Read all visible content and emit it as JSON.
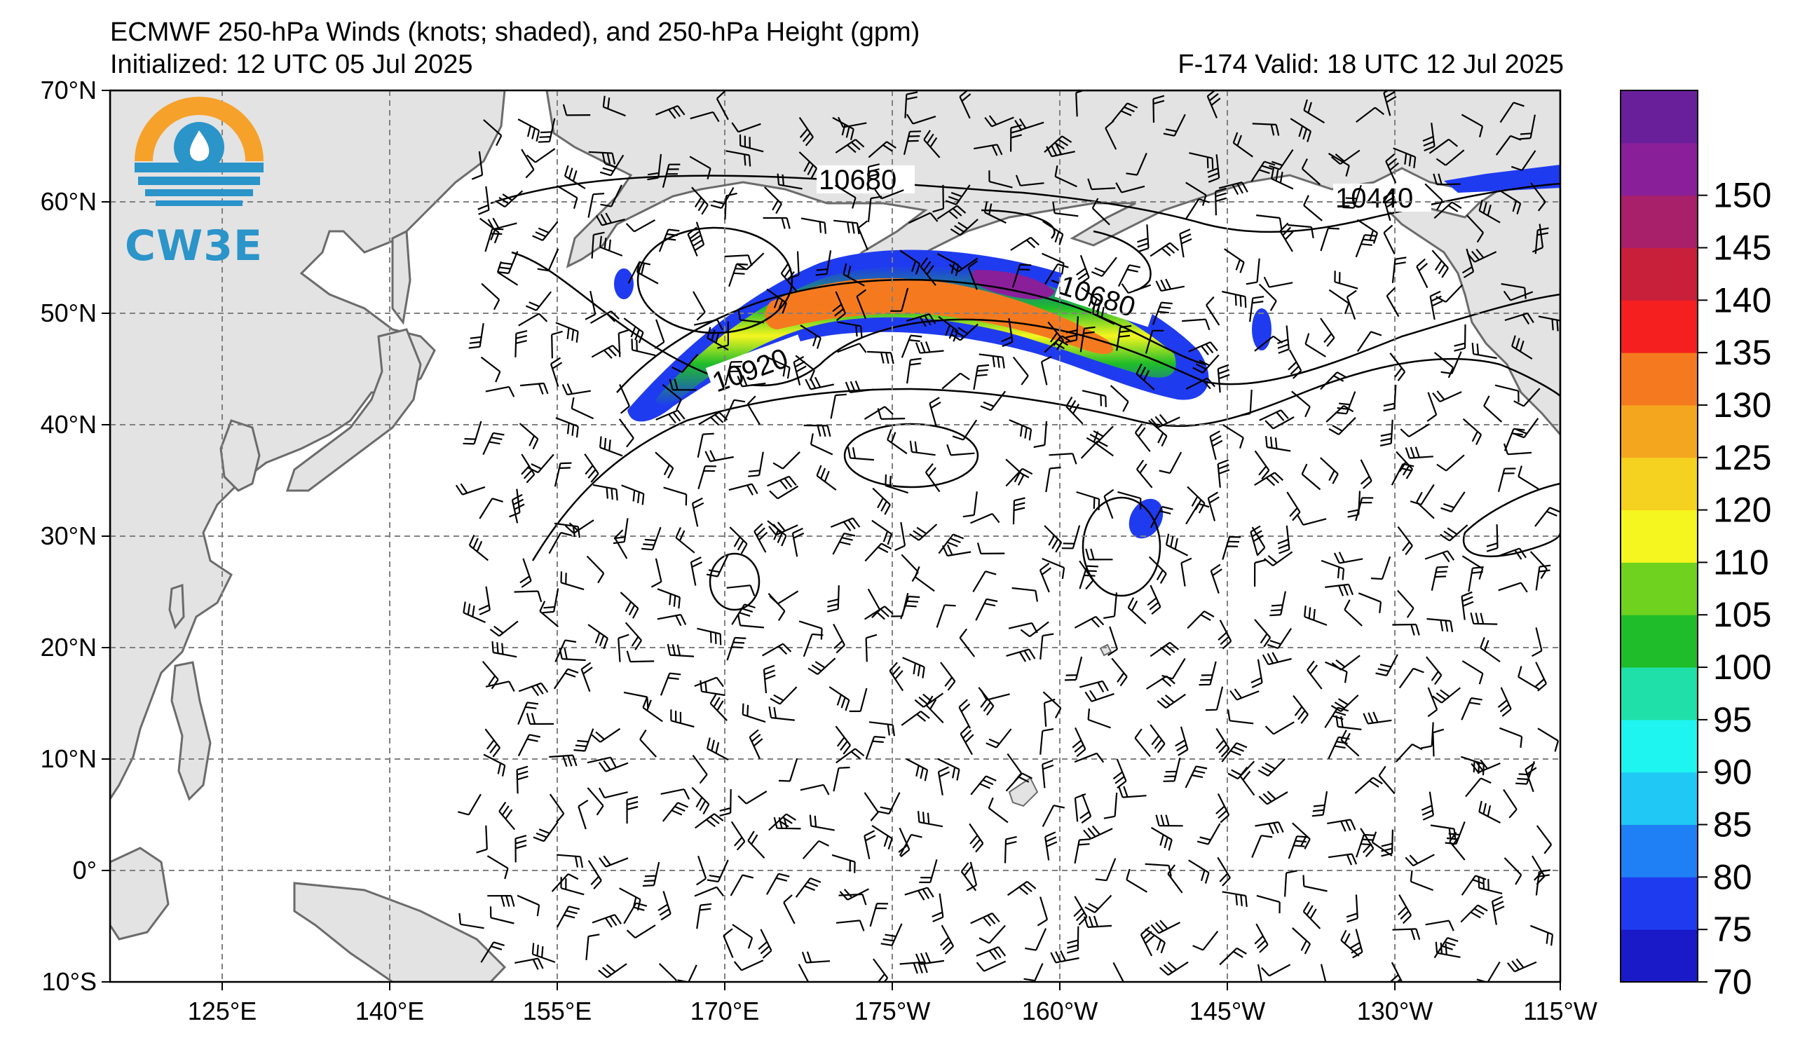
{
  "title": {
    "line1": "ECMWF 250-hPa Winds (knots; shaded), and 250-hPa Height (gpm)",
    "initialized": "Initialized: 12 UTC 05 Jul 2025",
    "valid": "F-174  Valid: 18 UTC 12 Jul 2025"
  },
  "logo": {
    "text": "CW3E",
    "colors": {
      "orange": "#f6a12a",
      "blue": "#2b94c9",
      "teal": "#3aa6cf"
    }
  },
  "map": {
    "land_color": "#e3e3e3",
    "coast_color": "#6b6b6b",
    "grid_color": "#808080",
    "lat_labels": [
      "70°N",
      "60°N",
      "50°N",
      "40°N",
      "30°N",
      "20°N",
      "10°N",
      "0°",
      "10°S"
    ],
    "lon_labels": [
      "125°E",
      "140°E",
      "155°E",
      "170°E",
      "175°W",
      "160°W",
      "145°W",
      "130°W",
      "115°W"
    ],
    "contour_labels": [
      "10680",
      "10680",
      "10440",
      "10920"
    ]
  },
  "colorbar": {
    "ticks": [
      "70",
      "75",
      "80",
      "85",
      "90",
      "95",
      "100",
      "105",
      "110",
      "120",
      "125",
      "130",
      "135",
      "140",
      "145",
      "150"
    ],
    "colors": [
      "#1a1ac8",
      "#1f3bf0",
      "#1f7ff5",
      "#1fc8f5",
      "#1ff5f0",
      "#1fe0a8",
      "#1fbd2a",
      "#6fd21f",
      "#f5f51f",
      "#f5d21f",
      "#f5a61f",
      "#f57a1f",
      "#f51f1f",
      "#c81f3b",
      "#a81f6a",
      "#8a1f9a",
      "#6a1f9a"
    ]
  }
}
